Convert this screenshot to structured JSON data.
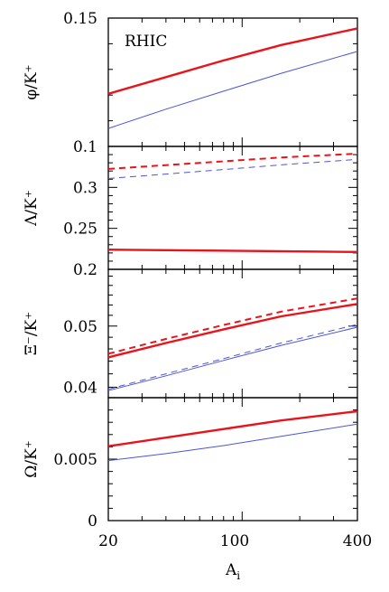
{
  "chart_data": [
    {
      "type": "line",
      "annotation": "RHIC",
      "ylabel": "φ/K⁺",
      "xscale": "log",
      "xlim": [
        20,
        400
      ],
      "ylim": [
        0.1,
        0.15
      ],
      "yticks": [
        {
          "v": 0.15,
          "label": "0.15"
        },
        {
          "v": 0.1,
          "label": "0.1"
        }
      ],
      "yminor": [
        0.11,
        0.12,
        0.13,
        0.14
      ],
      "series": [
        {
          "color": "#e8141c",
          "width": 2.4,
          "dash": "",
          "x": [
            20,
            40,
            80,
            160,
            400
          ],
          "y": [
            0.1205,
            0.127,
            0.1335,
            0.1395,
            0.146
          ]
        },
        {
          "color": "#4a55d6",
          "width": 1.0,
          "dash": "",
          "x": [
            20,
            40,
            80,
            160,
            400
          ],
          "y": [
            0.107,
            0.1145,
            0.1215,
            0.1285,
            0.137
          ]
        }
      ]
    },
    {
      "type": "line",
      "ylabel": "Λ/K⁺",
      "xscale": "log",
      "xlim": [
        20,
        400
      ],
      "ylim": [
        0.2,
        0.35
      ],
      "yticks": [
        {
          "v": 0.3,
          "label": "0.3"
        },
        {
          "v": 0.25,
          "label": "0.25"
        },
        {
          "v": 0.2,
          "label": "0.2"
        }
      ],
      "yminor": [
        0.21,
        0.22,
        0.23,
        0.24,
        0.26,
        0.27,
        0.28,
        0.29,
        0.31,
        0.32,
        0.33,
        0.34
      ],
      "series": [
        {
          "color": "#e8141c",
          "width": 2.0,
          "dash": "7,5",
          "x": [
            20,
            40,
            80,
            160,
            400
          ],
          "y": [
            0.3225,
            0.3272,
            0.3318,
            0.3365,
            0.3412
          ]
        },
        {
          "color": "#4a55d6",
          "width": 1.0,
          "dash": "7,5",
          "x": [
            20,
            40,
            80,
            160,
            400
          ],
          "y": [
            0.3108,
            0.3162,
            0.3218,
            0.3275,
            0.3342
          ]
        },
        {
          "color": "#4a55d6",
          "width": 1.0,
          "dash": "",
          "x": [
            20,
            400
          ],
          "y": [
            0.2245,
            0.2218
          ]
        },
        {
          "color": "#e8141c",
          "width": 2.4,
          "dash": "",
          "x": [
            20,
            400
          ],
          "y": [
            0.224,
            0.2212
          ]
        }
      ]
    },
    {
      "type": "line",
      "ylabel": "Ξ⁻/K⁺",
      "xscale": "log",
      "yscale": "log",
      "xlim": [
        20,
        400
      ],
      "ylim": [
        0.0385,
        0.0615
      ],
      "yticks": [
        {
          "v": 0.05,
          "label": "0.05"
        },
        {
          "v": 0.04,
          "label": "0.04"
        }
      ],
      "yminor": [
        0.042,
        0.044,
        0.046,
        0.048,
        0.052,
        0.054,
        0.056,
        0.058,
        0.06
      ],
      "series": [
        {
          "color": "#e8141c",
          "width": 2.0,
          "dash": "7,5",
          "x": [
            20,
            40,
            80,
            160,
            400
          ],
          "y": [
            0.0452,
            0.0477,
            0.0502,
            0.0527,
            0.0553
          ]
        },
        {
          "color": "#e8141c",
          "width": 2.4,
          "dash": "",
          "x": [
            20,
            40,
            80,
            160,
            400
          ],
          "y": [
            0.0446,
            0.047,
            0.0494,
            0.0518,
            0.0542
          ]
        },
        {
          "color": "#4a55d6",
          "width": 1.0,
          "dash": "7,5",
          "x": [
            20,
            40,
            80,
            160,
            400
          ],
          "y": [
            0.0397,
            0.042,
            0.0444,
            0.047,
            0.0503
          ]
        },
        {
          "color": "#4a55d6",
          "width": 1.0,
          "dash": "",
          "x": [
            20,
            40,
            80,
            160,
            400
          ],
          "y": [
            0.0395,
            0.0417,
            0.0441,
            0.0466,
            0.0498
          ]
        }
      ]
    },
    {
      "type": "line",
      "ylabel": "Ω/K⁺",
      "xlabel": "A_i",
      "xscale": "log",
      "xlim": [
        20,
        400
      ],
      "ylim": [
        0,
        0.01
      ],
      "yticks": [
        {
          "v": 0.005,
          "label": "0.005"
        },
        {
          "v": 0,
          "label": "0"
        }
      ],
      "yminor": [
        0.001,
        0.002,
        0.003,
        0.004,
        0.006,
        0.007,
        0.008,
        0.009
      ],
      "xticks": [
        {
          "v": 20,
          "label": "20"
        },
        {
          "v": 100,
          "label": "100"
        },
        {
          "v": 400,
          "label": "400"
        }
      ],
      "series": [
        {
          "color": "#e8141c",
          "width": 2.4,
          "dash": "",
          "x": [
            20,
            40,
            80,
            160,
            400
          ],
          "y": [
            0.00605,
            0.00675,
            0.00745,
            0.00815,
            0.0089
          ]
        },
        {
          "color": "#4a55d6",
          "width": 1.0,
          "dash": "",
          "x": [
            20,
            40,
            80,
            160,
            400
          ],
          "y": [
            0.00488,
            0.00545,
            0.0061,
            0.00685,
            0.00785
          ]
        }
      ]
    }
  ],
  "x_axis": {
    "label": "A",
    "label_sub": "i",
    "ticks": [
      "20",
      "100",
      "400"
    ]
  }
}
